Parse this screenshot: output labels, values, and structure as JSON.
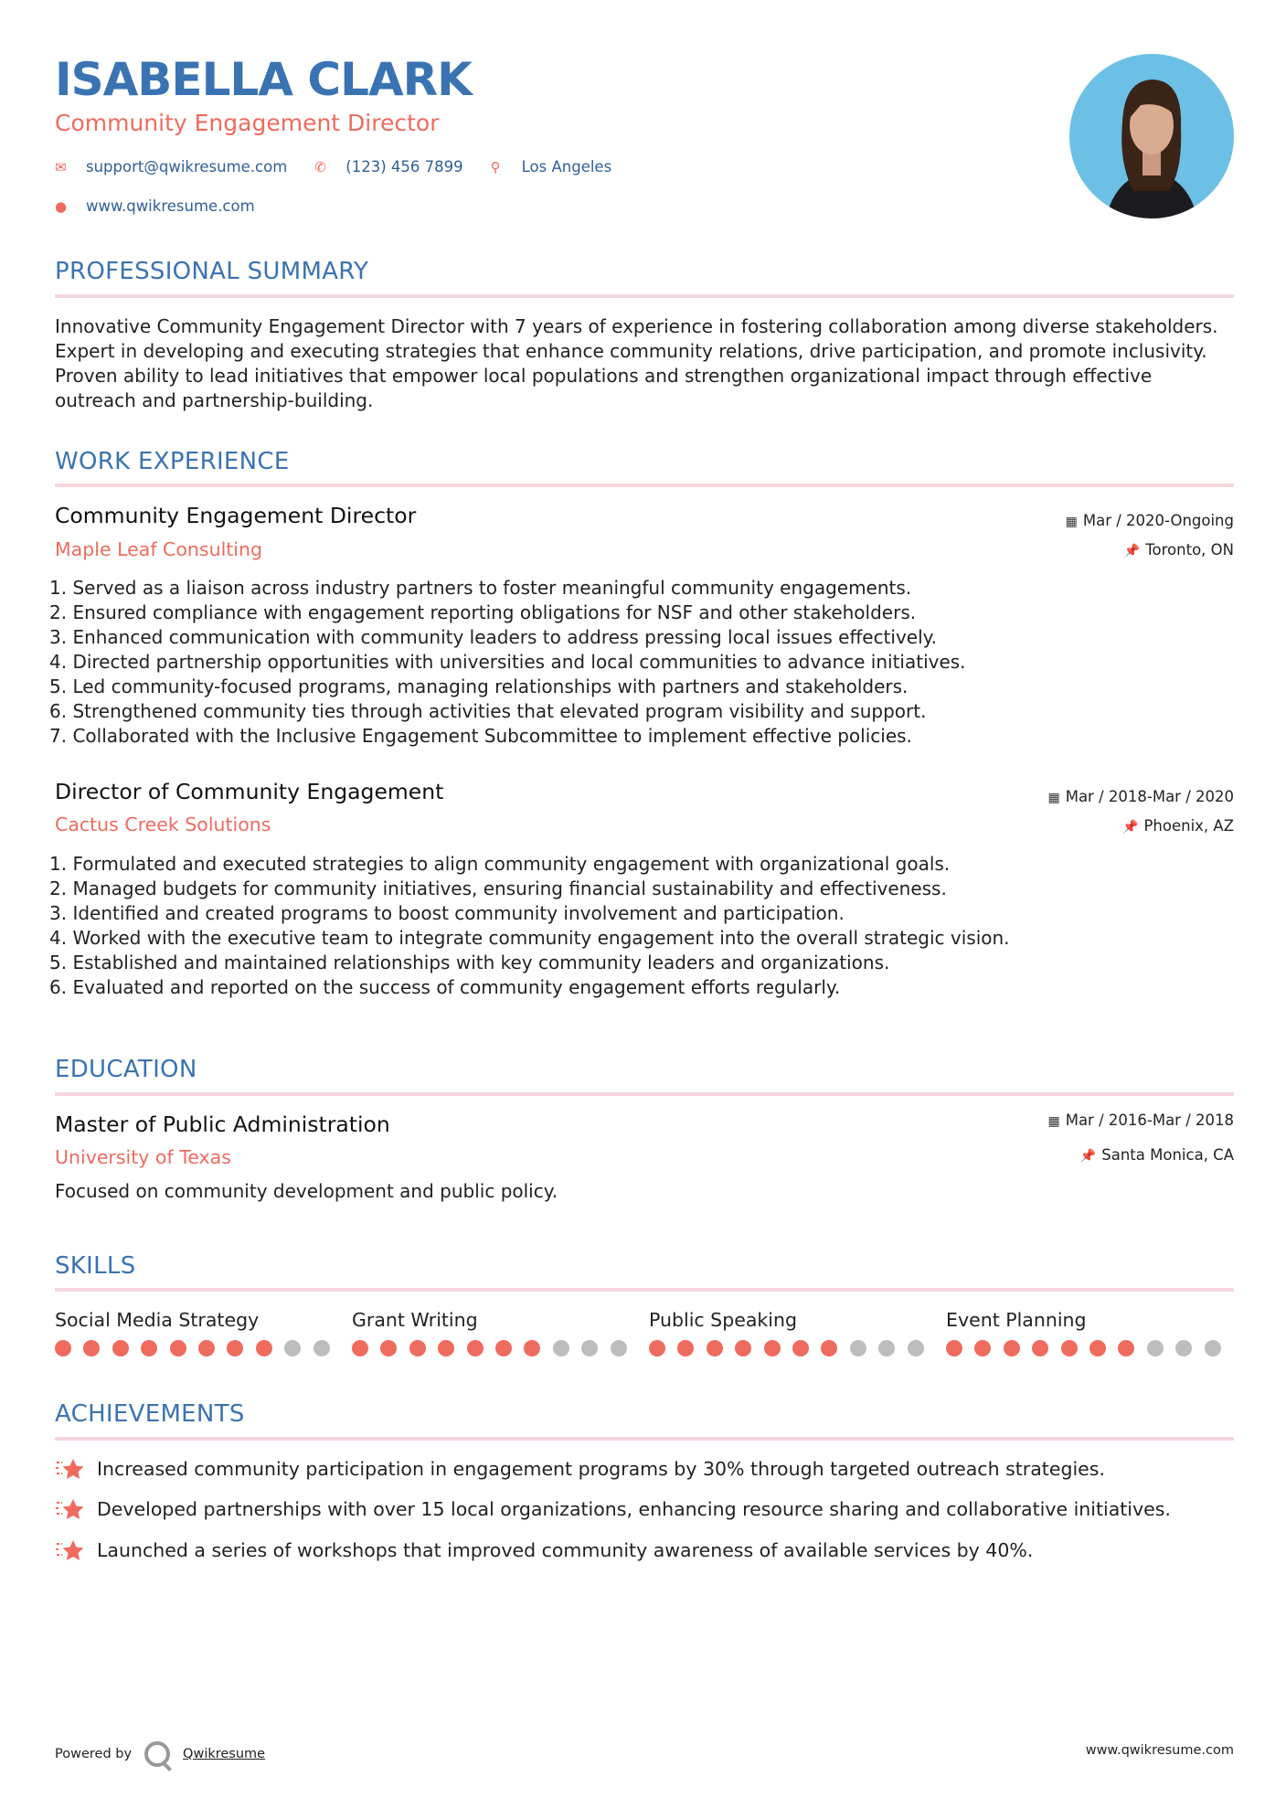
{
  "header": {
    "name": "ISABELLA CLARK",
    "title": "Community Engagement Director",
    "contacts": [
      {
        "icon": "envelope-icon",
        "text": "support@qwikresume.com"
      },
      {
        "icon": "phone-icon",
        "text": "(123) 456 7899"
      },
      {
        "icon": "map-pin-icon",
        "text": "Los Angeles"
      }
    ],
    "website": {
      "icon": "globe-icon",
      "text": "www.qwikresume.com"
    }
  },
  "summary": {
    "heading": "PROFESSIONAL SUMMARY",
    "text": "Innovative Community Engagement Director with 7 years of experience in fostering collaboration among diverse stakeholders. Expert in developing and executing strategies that enhance community relations, drive participation, and promote inclusivity. Proven ability to lead initiatives that empower local populations and strengthen organizational impact through effective outreach and partnership-building."
  },
  "experience": {
    "heading": "WORK EXPERIENCE",
    "jobs": [
      {
        "title": "Community Engagement Director",
        "company": "Maple Leaf Consulting",
        "date": "Mar / 2020-Ongoing",
        "location": "Toronto, ON",
        "bullets": [
          "1. Served as a liaison across industry partners to foster meaningful community engagements.",
          "2. Ensured compliance with engagement reporting obligations for NSF and other stakeholders.",
          "3. Enhanced communication with community leaders to address pressing local issues effectively.",
          "4. Directed partnership opportunities with universities and local communities to advance initiatives.",
          "5. Led community-focused programs, managing relationships with partners and stakeholders.",
          "6. Strengthened community ties through activities that elevated program visibility and support.",
          "7. Collaborated with the Inclusive Engagement Subcommittee to implement effective policies."
        ]
      },
      {
        "title": "Director of Community Engagement",
        "company": "Cactus Creek Solutions",
        "date": "Mar / 2018-Mar / 2020",
        "location": "Phoenix, AZ",
        "bullets": [
          "1. Formulated and executed strategies to align community engagement with organizational goals.",
          "2. Managed budgets for community initiatives, ensuring financial sustainability and effectiveness.",
          "3. Identified and created programs to boost community involvement and participation.",
          "4. Worked with the executive team to integrate community engagement into the overall strategic vision.",
          "5. Established and maintained relationships with key community leaders and organizations.",
          "6. Evaluated and reported on the success of community engagement efforts regularly."
        ]
      }
    ]
  },
  "education": {
    "heading": "EDUCATION",
    "degree": "Master of Public Administration",
    "school": "University of Texas",
    "date": "Mar / 2016-Mar / 2018",
    "location": "Santa Monica, CA",
    "description": "Focused on community development and public policy."
  },
  "skills": {
    "heading": "SKILLS",
    "max": 10,
    "items": [
      {
        "name": "Social Media Strategy",
        "level": 8
      },
      {
        "name": "Grant Writing",
        "level": 7
      },
      {
        "name": "Public Speaking",
        "level": 7
      },
      {
        "name": "Event Planning",
        "level": 7
      }
    ]
  },
  "achievements": {
    "heading": "ACHIEVEMENTS",
    "items": [
      "Increased community participation in engagement programs by 30% through targeted outreach strategies.",
      "Developed partnerships with over 15 local organizations, enhancing resource sharing and collaborative initiatives.",
      "Launched a series of workshops that improved community awareness of available services by 40%."
    ]
  },
  "footer": {
    "powered_by": "Powered by",
    "brand": "Qwikresume",
    "website": "www.qwikresume.com"
  },
  "colors": {
    "primary": "#3a73b2",
    "accent": "#ee6b5e",
    "divider": "#f7d6dd",
    "inactive_dot": "#bdbdbd"
  }
}
